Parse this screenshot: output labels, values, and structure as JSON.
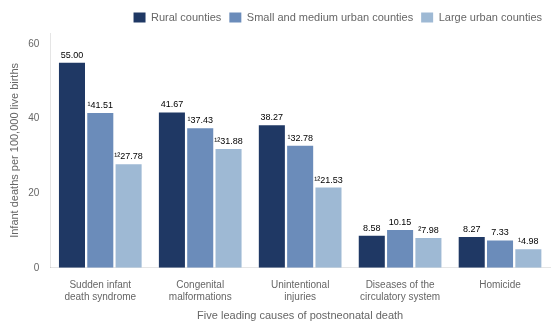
{
  "chart_data": {
    "type": "bar",
    "categories": [
      "Sudden infant\ndeath syndrome",
      "Congenital\nmalformations",
      "Unintentional\ninjuries",
      "Diseases of the\ncirculatory system",
      "Homicide"
    ],
    "series": [
      {
        "name": "Rural counties",
        "color": "#1f3864",
        "values": [
          55.0,
          41.67,
          38.27,
          8.58,
          8.27
        ],
        "value_labels": [
          "55.00",
          "41.67",
          "38.27",
          "8.58",
          "8.27"
        ]
      },
      {
        "name": "Small and medium urban counties",
        "color": "#6b8cba",
        "values": [
          41.51,
          37.43,
          32.78,
          10.15,
          7.33
        ],
        "value_labels": [
          "¹41.51",
          "¹37.43",
          "¹32.78",
          "10.15",
          "7.33"
        ]
      },
      {
        "name": "Large urban counties",
        "color": "#9eb9d4",
        "values": [
          27.78,
          31.88,
          21.53,
          7.98,
          4.98
        ],
        "value_labels": [
          "¹²27.78",
          "¹²31.88",
          "¹²21.53",
          "²7.98",
          "¹4.98"
        ]
      }
    ],
    "xlabel": "Five leading causes of postneonatal death",
    "ylabel": "Infant deaths per 100,000 live births",
    "ylim": [
      0,
      63
    ],
    "yticks": [
      0,
      20,
      40,
      60
    ],
    "grid": false,
    "legend": "upper right",
    "data_labels": true
  }
}
